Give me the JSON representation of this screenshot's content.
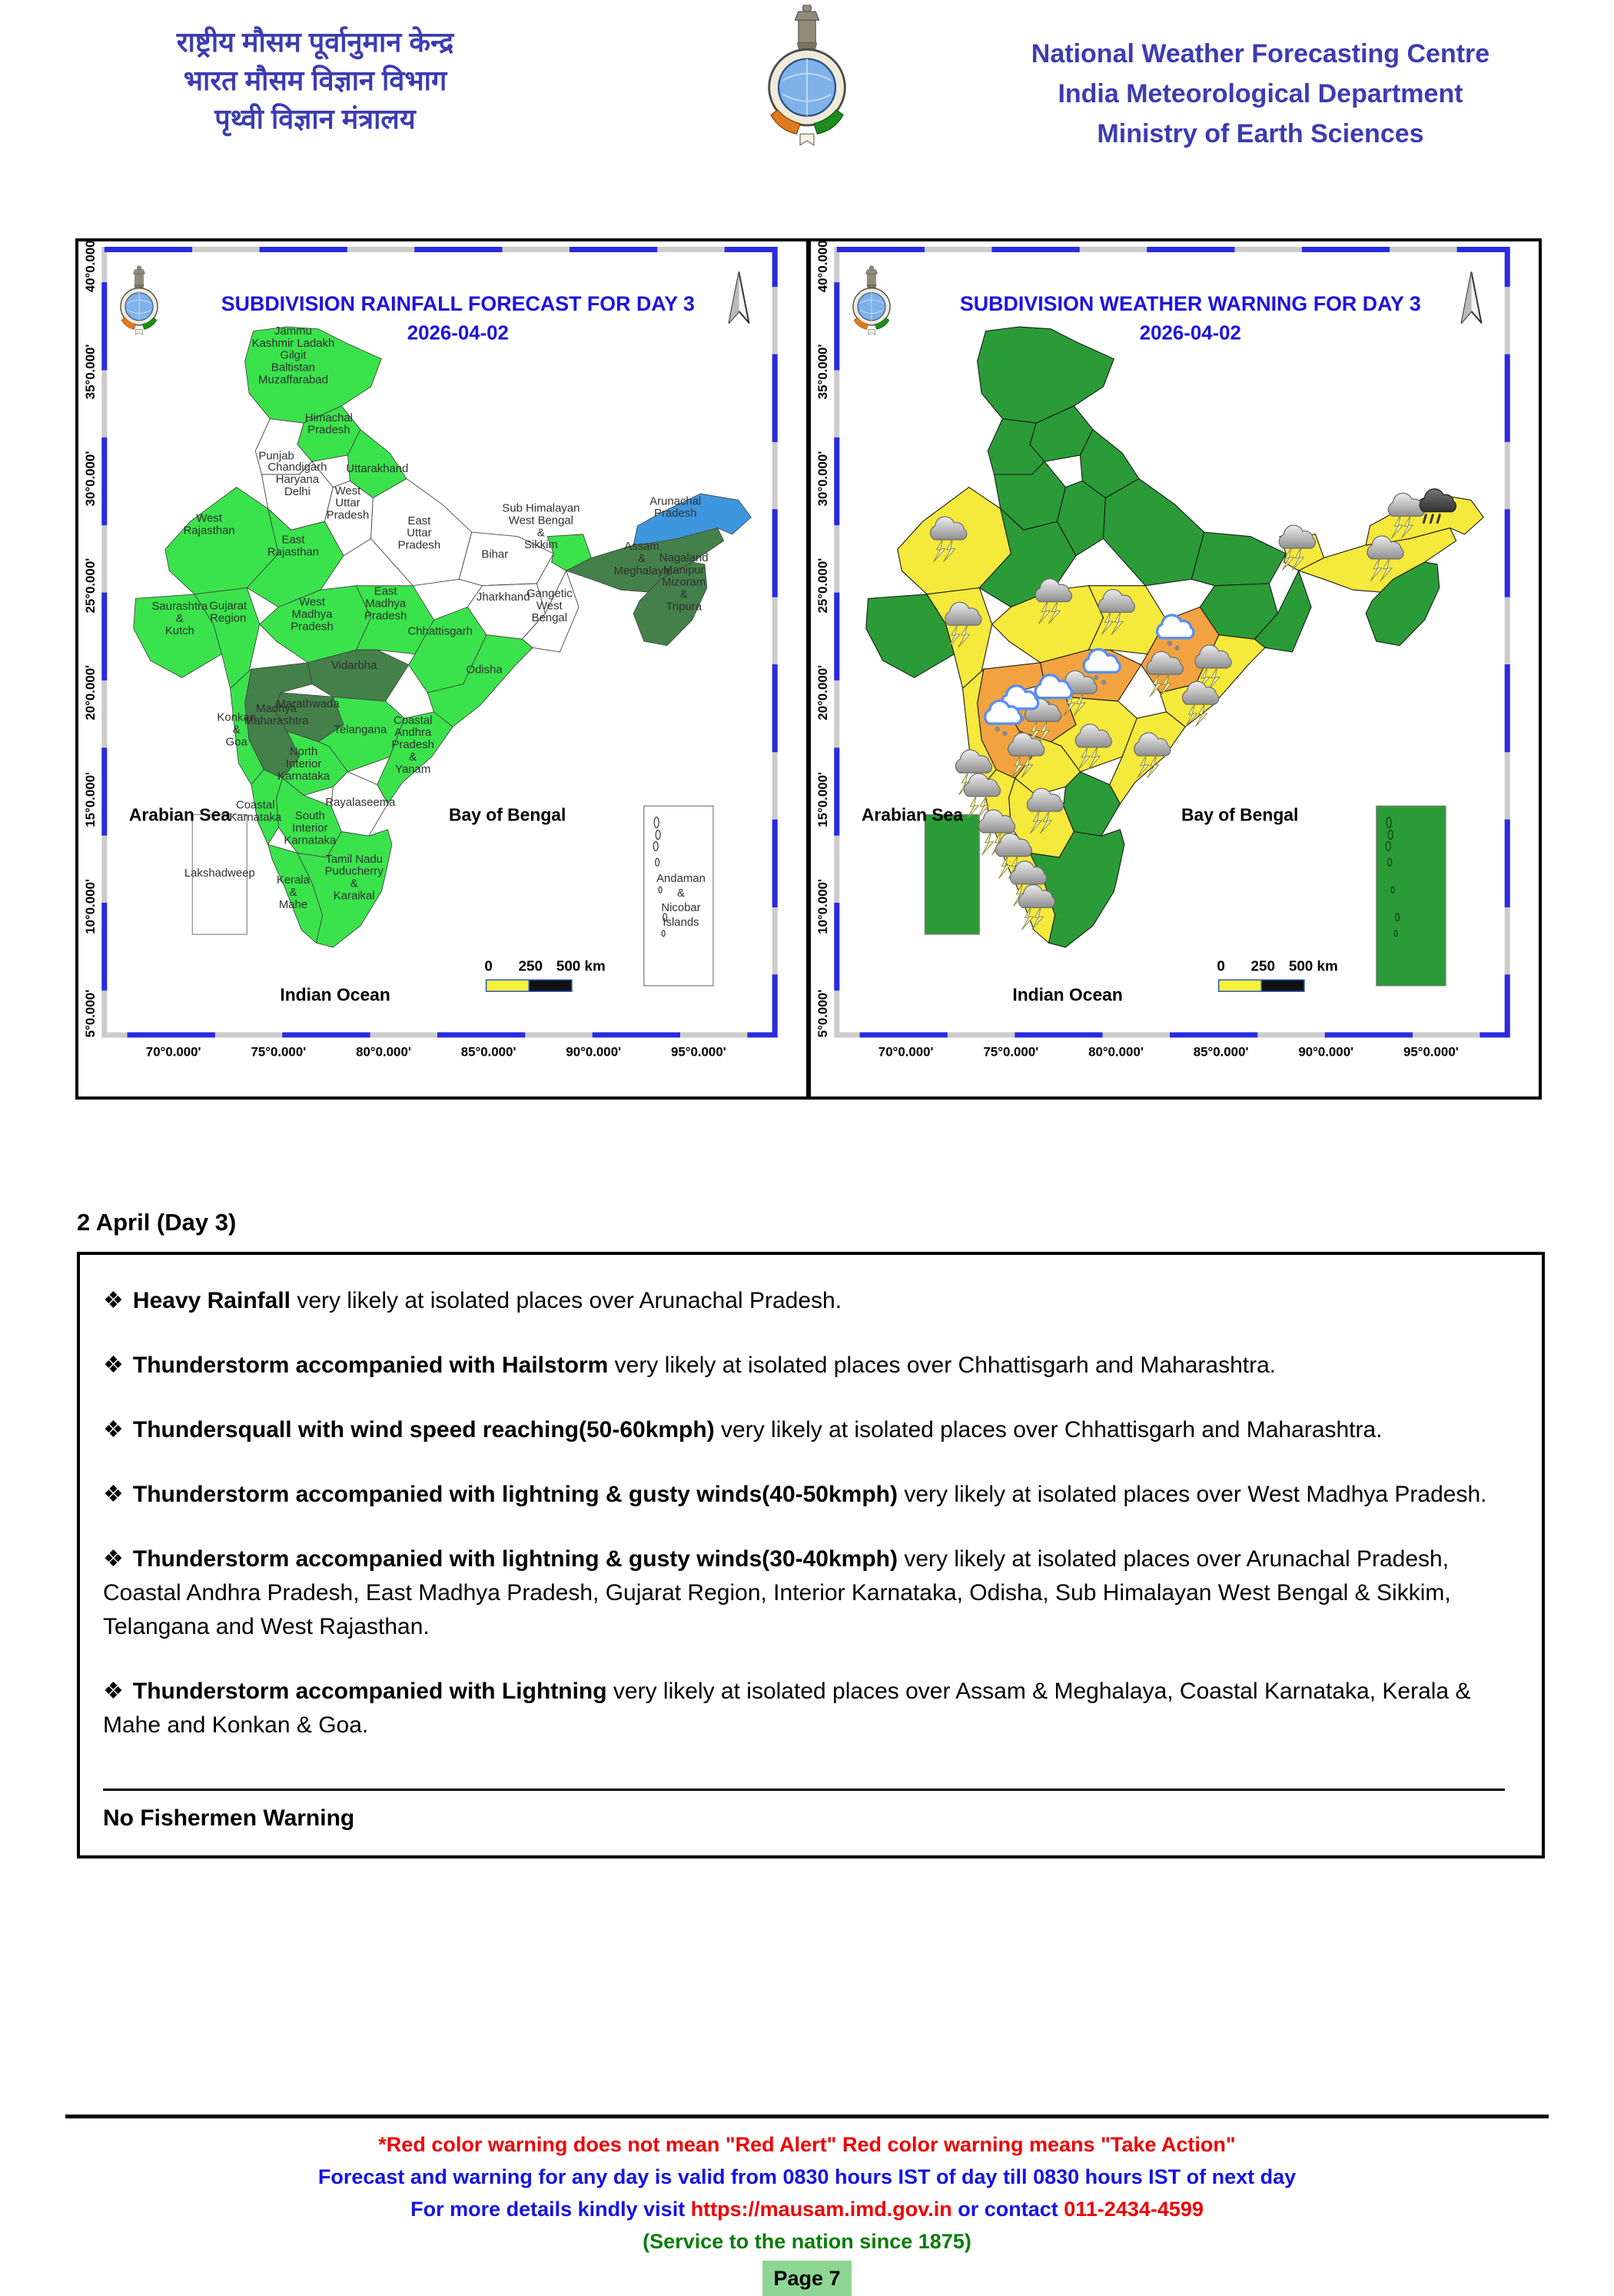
{
  "header": {
    "hindi1": "राष्ट्रीय मौसम पूर्वानुमान केन्द्र",
    "hindi2": "भारत मौसम विज्ञान विभाग",
    "hindi3": "पृथ्वी विज्ञान मंत्रालय",
    "eng1": "National Weather Forecasting Centre",
    "eng2": "India Meteorological Department",
    "eng3": "Ministry of Earth Sciences",
    "text_color": "#3c3cb2"
  },
  "maps": {
    "palette": {
      "lg": "#3ae34c",
      "dg": "#44804a",
      "wh": "#ffffff",
      "bl": "#3e97de",
      "gr": "#2b9b38",
      "yl": "#f5e93c",
      "or": "#f2a340"
    },
    "title_color": "#1c14e0",
    "frame_color": "#2a2ae0",
    "shared": {
      "y_ticks": [
        "40°0.000'",
        "35°0.000'",
        "30°0.000'",
        "25°0.000'",
        "20°0.000'",
        "15°0.000'",
        "10°0.000'",
        "5°0.000'"
      ],
      "y_lats": [
        40,
        35,
        30,
        25,
        20,
        15,
        10,
        5
      ],
      "x_ticks": [
        "70°0.000'",
        "75°0.000'",
        "80°0.000'",
        "85°0.000'",
        "90°0.000'",
        "95°0.000'"
      ],
      "x_lons": [
        70,
        75,
        80,
        85,
        90,
        95
      ],
      "arabian_sea": "Arabian Sea",
      "bay_of_bengal": "Bay of Bengal",
      "indian_ocean": "Indian Ocean",
      "scale_labels": [
        "0",
        "250",
        "500 km"
      ],
      "lakshadweep_label": "Lakshadweep",
      "andaman_label": [
        "Andaman",
        "&",
        "Nicobar",
        "Islands"
      ]
    },
    "left": {
      "title1": "SUBDIVISION RAINFALL FORECAST FOR DAY 3",
      "title2": "2026-04-02",
      "box_fill": "wh",
      "show_labels": true,
      "fills": {
        "JK": "lg",
        "HP": "lg",
        "PUN": "wh",
        "UTK": "lg",
        "CHD": "wh",
        "WUP": "wh",
        "EUP": "wh",
        "WRAJ": "lg",
        "ERAJ": "lg",
        "SK": "lg",
        "GUJ": "lg",
        "WMP": "lg",
        "EMP": "lg",
        "BIH": "wh",
        "JHA": "wh",
        "SHWB": "lg",
        "GWB": "wh",
        "CHG": "lg",
        "ODI": "lg",
        "VID": "dg",
        "MAR": "dg",
        "MMH": "dg",
        "KON": "lg",
        "TEL": "lg",
        "CAP": "lg",
        "RAY": "wh",
        "NIK": "lg",
        "SIK": "lg",
        "CKA": "lg",
        "KER": "lg",
        "TN": "lg",
        "ASM": "dg",
        "NMMT": "dg",
        "ARP": "bl"
      },
      "labels": [
        {
          "lines": [
            "Jammu",
            "Kashmir Ladakh",
            "Gilgit",
            "Baltistan",
            "Muzaffarabad"
          ],
          "lon": 75.7,
          "lat": 35.6
        },
        {
          "lines": [
            "Himachal",
            "Pradesh"
          ],
          "lon": 77.4,
          "lat": 32.4
        },
        {
          "lines": [
            "Punjab"
          ],
          "lon": 74.9,
          "lat": 30.9
        },
        {
          "lines": [
            "Uttarakhand"
          ],
          "lon": 79.7,
          "lat": 30.3
        },
        {
          "lines": [
            "Chandigarh",
            "Haryana",
            "Delhi"
          ],
          "lon": 75.9,
          "lat": 29.8
        },
        {
          "lines": [
            "West",
            "Uttar",
            "Pradesh"
          ],
          "lon": 78.3,
          "lat": 28.7
        },
        {
          "lines": [
            "East",
            "Uttar",
            "Pradesh"
          ],
          "lon": 81.7,
          "lat": 27.3
        },
        {
          "lines": [
            "West",
            "Rajasthan"
          ],
          "lon": 71.7,
          "lat": 27.7
        },
        {
          "lines": [
            "East",
            "Rajasthan"
          ],
          "lon": 75.7,
          "lat": 26.7
        },
        {
          "lines": [
            "Saurashtra",
            "&",
            "Kutch"
          ],
          "lon": 70.3,
          "lat": 23.3
        },
        {
          "lines": [
            "Gujarat",
            "Region"
          ],
          "lon": 72.6,
          "lat": 23.6
        },
        {
          "lines": [
            "West",
            "Madhya",
            "Pradesh"
          ],
          "lon": 76.6,
          "lat": 23.5
        },
        {
          "lines": [
            "East",
            "Madhya",
            "Pradesh"
          ],
          "lon": 80.1,
          "lat": 24.0
        },
        {
          "lines": [
            "Bihar"
          ],
          "lon": 85.3,
          "lat": 26.3
        },
        {
          "lines": [
            "Jharkhand"
          ],
          "lon": 85.7,
          "lat": 24.3
        },
        {
          "lines": [
            "Sub Himalayan",
            "West Bengal",
            "&",
            "Sikkim"
          ],
          "lon": 87.5,
          "lat": 27.6
        },
        {
          "lines": [
            "Gangetic",
            "West",
            "Bengal"
          ],
          "lon": 87.9,
          "lat": 23.9
        },
        {
          "lines": [
            "Chhattisgarh"
          ],
          "lon": 82.7,
          "lat": 22.7
        },
        {
          "lines": [
            "Odisha"
          ],
          "lon": 84.8,
          "lat": 20.9
        },
        {
          "lines": [
            "Vidarbha"
          ],
          "lon": 78.6,
          "lat": 21.1
        },
        {
          "lines": [
            "Marathwada"
          ],
          "lon": 76.4,
          "lat": 19.3
        },
        {
          "lines": [
            "Madhya",
            "Maharashtra"
          ],
          "lon": 74.9,
          "lat": 18.8
        },
        {
          "lines": [
            "Konkan",
            "&",
            "Goa"
          ],
          "lon": 73.0,
          "lat": 18.1
        },
        {
          "lines": [
            "North",
            "Interior",
            "Karnataka"
          ],
          "lon": 76.2,
          "lat": 16.5
        },
        {
          "lines": [
            "Telangana"
          ],
          "lon": 78.9,
          "lat": 18.1
        },
        {
          "lines": [
            "Coastal",
            "Andhra",
            "Pradesh",
            "&",
            "Yanam"
          ],
          "lon": 81.4,
          "lat": 17.4
        },
        {
          "lines": [
            "Rayalaseema"
          ],
          "lon": 78.9,
          "lat": 14.7
        },
        {
          "lines": [
            "Coastal",
            "Karnataka"
          ],
          "lon": 73.9,
          "lat": 14.3
        },
        {
          "lines": [
            "South",
            "Interior",
            "Karnataka"
          ],
          "lon": 76.5,
          "lat": 13.5
        },
        {
          "lines": [
            "Tamil Nadu",
            "Puducherry",
            "&",
            "Karaikal"
          ],
          "lon": 78.6,
          "lat": 11.2
        },
        {
          "lines": [
            "Kerala",
            "&",
            "Mahe"
          ],
          "lon": 75.7,
          "lat": 10.5
        },
        {
          "lines": [
            "Arunachal",
            "Pradesh"
          ],
          "lon": 93.9,
          "lat": 28.5
        },
        {
          "lines": [
            "Assam",
            "&",
            "Meghalaya"
          ],
          "lon": 92.3,
          "lat": 26.1
        },
        {
          "lines": [
            "Nagaland",
            "Manipur",
            "Mizoram",
            "&",
            "Tripura"
          ],
          "lon": 94.3,
          "lat": 25.0
        }
      ],
      "icons": []
    },
    "right": {
      "title1": "SUBDIVISION WEATHER WARNING FOR DAY 3",
      "title2": "2026-04-02",
      "box_fill": "gr",
      "show_labels": false,
      "fills": {
        "JK": "gr",
        "HP": "gr",
        "PUN": "gr",
        "UTK": "gr",
        "CHD": "gr",
        "WUP": "gr",
        "EUP": "gr",
        "WRAJ": "yl",
        "ERAJ": "gr",
        "SK": "gr",
        "GUJ": "yl",
        "WMP": "yl",
        "EMP": "yl",
        "BIH": "gr",
        "JHA": "gr",
        "SHWB": "yl",
        "GWB": "gr",
        "CHG": "or",
        "ODI": "yl",
        "VID": "or",
        "MAR": "or",
        "MMH": "or",
        "KON": "yl",
        "TEL": "yl",
        "CAP": "yl",
        "RAY": "gr",
        "NIK": "yl",
        "SIK": "yl",
        "CKA": "yl",
        "KER": "yl",
        "TN": "gr",
        "ASM": "yl",
        "NMMT": "gr",
        "ARP": "yl"
      },
      "labels": [],
      "icons": [
        {
          "t": "ts",
          "lon": 71.9,
          "lat": 27.4
        },
        {
          "t": "ts",
          "lon": 72.6,
          "lat": 23.4
        },
        {
          "t": "ts",
          "lon": 76.9,
          "lat": 24.5
        },
        {
          "t": "ts",
          "lon": 79.9,
          "lat": 24.0
        },
        {
          "t": "hail",
          "lon": 82.7,
          "lat": 22.8
        },
        {
          "t": "ts",
          "lon": 82.2,
          "lat": 21.1
        },
        {
          "t": "hail",
          "lon": 79.2,
          "lat": 21.2
        },
        {
          "t": "ts",
          "lon": 78.1,
          "lat": 20.2
        },
        {
          "t": "hail",
          "lon": 76.9,
          "lat": 20.0
        },
        {
          "t": "ts",
          "lon": 76.4,
          "lat": 18.9
        },
        {
          "t": "hail",
          "lon": 75.3,
          "lat": 19.5
        },
        {
          "t": "hail",
          "lon": 74.5,
          "lat": 18.8
        },
        {
          "t": "ts",
          "lon": 75.6,
          "lat": 17.3
        },
        {
          "t": "ts",
          "lon": 73.1,
          "lat": 16.5
        },
        {
          "t": "ts",
          "lon": 73.5,
          "lat": 15.4
        },
        {
          "t": "ts",
          "lon": 76.5,
          "lat": 14.7
        },
        {
          "t": "ts",
          "lon": 74.2,
          "lat": 13.7
        },
        {
          "t": "ts",
          "lon": 75.0,
          "lat": 12.6
        },
        {
          "t": "ts",
          "lon": 75.7,
          "lat": 11.3
        },
        {
          "t": "ts",
          "lon": 76.1,
          "lat": 10.2
        },
        {
          "t": "ts",
          "lon": 78.8,
          "lat": 17.7
        },
        {
          "t": "ts",
          "lon": 81.6,
          "lat": 17.3
        },
        {
          "t": "ts",
          "lon": 84.5,
          "lat": 21.4
        },
        {
          "t": "ts",
          "lon": 83.9,
          "lat": 19.7
        },
        {
          "t": "ts",
          "lon": 88.5,
          "lat": 27.0
        },
        {
          "t": "ts",
          "lon": 92.7,
          "lat": 26.5
        },
        {
          "t": "ts",
          "lon": 93.7,
          "lat": 28.5
        },
        {
          "t": "rain",
          "lon": 95.2,
          "lat": 28.7
        }
      ]
    }
  },
  "warnings": {
    "heading": "2 April (Day 3)",
    "bullet": "❖",
    "items": [
      {
        "bold": "Heavy Rainfall",
        "rest": " very likely at isolated places over Arunachal Pradesh."
      },
      {
        "bold": "Thunderstorm accompanied with Hailstorm",
        "rest": " very likely at isolated places over Chhattisgarh and Maharashtra."
      },
      {
        "bold": "Thundersquall with wind speed reaching(50-60kmph)",
        "rest": " very likely at isolated places over Chhattisgarh and Maharashtra."
      },
      {
        "bold": "Thunderstorm accompanied with lightning & gusty winds(40-50kmph)",
        "rest": " very likely at isolated places over West Madhya Pradesh."
      },
      {
        "bold": "Thunderstorm accompanied with lightning & gusty winds(30-40kmph)",
        "rest": " very likely at isolated places over Arunachal Pradesh, Coastal Andhra Pradesh, East Madhya Pradesh, Gujarat Region, Interior Karnataka, Odisha, Sub Himalayan West Bengal & Sikkim, Telangana and West Rajasthan."
      },
      {
        "bold": "Thunderstorm accompanied with Lightning",
        "rest": " very likely at isolated places over Assam & Meghalaya, Coastal Karnataka, Kerala & Mahe and Konkan & Goa."
      }
    ],
    "fishermen": "No Fishermen Warning"
  },
  "footer": {
    "line1": "*Red color warning does not mean \"Red Alert\" Red color warning means \"Take Action\"",
    "line2": "Forecast and warning for any day is valid from 0830 hours IST of day till 0830 hours IST of next day",
    "line3_prefix": "For more details kindly visit ",
    "link": "https://mausam.imd.gov.in",
    "line3_mid": " or contact ",
    "phone": "011-2434-4599",
    "line4": "(Service to the nation since 1875)",
    "page": "Page 7"
  }
}
